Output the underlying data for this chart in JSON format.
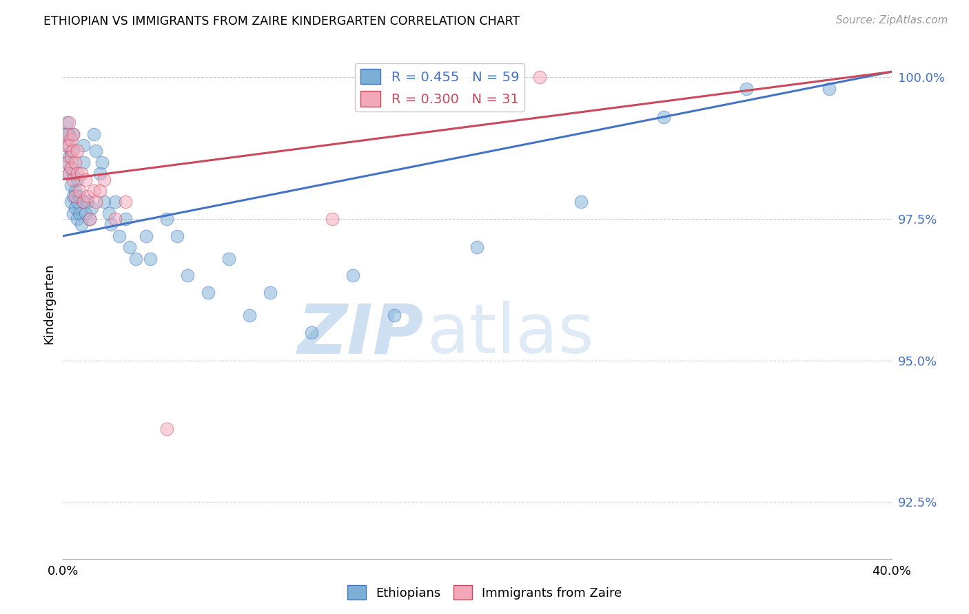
{
  "title": "ETHIOPIAN VS IMMIGRANTS FROM ZAIRE KINDERGARTEN CORRELATION CHART",
  "source": "Source: ZipAtlas.com",
  "ylabel": "Kindergarten",
  "xlim": [
    0.0,
    0.4
  ],
  "ylim": [
    0.915,
    1.005
  ],
  "xticks": [
    0.0,
    0.05,
    0.1,
    0.15,
    0.2,
    0.25,
    0.3,
    0.35,
    0.4
  ],
  "xtick_labels": [
    "0.0%",
    "",
    "",
    "",
    "",
    "",
    "",
    "",
    "40.0%"
  ],
  "yticks": [
    0.925,
    0.95,
    0.975,
    1.0
  ],
  "ytick_labels": [
    "92.5%",
    "95.0%",
    "97.5%",
    "100.0%"
  ],
  "blue_R": 0.455,
  "blue_N": 59,
  "pink_R": 0.3,
  "pink_N": 31,
  "blue_color": "#7BAFD4",
  "pink_color": "#F4A7B9",
  "blue_line_color": "#4472C4",
  "pink_line_color": "#C9485B",
  "watermark_zip": "ZIP",
  "watermark_atlas": "atlas",
  "blue_x": [
    0.001,
    0.002,
    0.002,
    0.002,
    0.003,
    0.003,
    0.003,
    0.004,
    0.004,
    0.004,
    0.004,
    0.005,
    0.005,
    0.005,
    0.005,
    0.006,
    0.006,
    0.007,
    0.007,
    0.007,
    0.008,
    0.008,
    0.009,
    0.01,
    0.01,
    0.01,
    0.011,
    0.012,
    0.013,
    0.014,
    0.015,
    0.016,
    0.018,
    0.019,
    0.02,
    0.022,
    0.023,
    0.025,
    0.027,
    0.03,
    0.032,
    0.035,
    0.04,
    0.042,
    0.05,
    0.055,
    0.06,
    0.07,
    0.08,
    0.09,
    0.1,
    0.12,
    0.14,
    0.16,
    0.2,
    0.25,
    0.29,
    0.33,
    0.37
  ],
  "blue_y": [
    0.99,
    0.988,
    0.992,
    0.985,
    0.983,
    0.986,
    0.99,
    0.984,
    0.987,
    0.981,
    0.978,
    0.979,
    0.983,
    0.976,
    0.99,
    0.977,
    0.98,
    0.975,
    0.978,
    0.982,
    0.976,
    0.979,
    0.974,
    0.978,
    0.985,
    0.988,
    0.976,
    0.978,
    0.975,
    0.977,
    0.99,
    0.987,
    0.983,
    0.985,
    0.978,
    0.976,
    0.974,
    0.978,
    0.972,
    0.975,
    0.97,
    0.968,
    0.972,
    0.968,
    0.975,
    0.972,
    0.965,
    0.962,
    0.968,
    0.958,
    0.962,
    0.955,
    0.965,
    0.958,
    0.97,
    0.978,
    0.993,
    0.998,
    0.998
  ],
  "pink_x": [
    0.001,
    0.002,
    0.002,
    0.003,
    0.003,
    0.003,
    0.004,
    0.004,
    0.004,
    0.005,
    0.005,
    0.005,
    0.006,
    0.006,
    0.007,
    0.007,
    0.008,
    0.009,
    0.01,
    0.011,
    0.012,
    0.013,
    0.015,
    0.016,
    0.018,
    0.02,
    0.025,
    0.03,
    0.05,
    0.13,
    0.23
  ],
  "pink_y": [
    0.988,
    0.99,
    0.985,
    0.988,
    0.983,
    0.992,
    0.986,
    0.989,
    0.984,
    0.982,
    0.987,
    0.99,
    0.985,
    0.979,
    0.983,
    0.987,
    0.98,
    0.983,
    0.978,
    0.982,
    0.979,
    0.975,
    0.98,
    0.978,
    0.98,
    0.982,
    0.975,
    0.978,
    0.938,
    0.975,
    1.0
  ],
  "blue_trend_x0": 0.0,
  "blue_trend_y0": 0.972,
  "blue_trend_x1": 0.4,
  "blue_trend_y1": 1.001,
  "pink_trend_x0": 0.0,
  "pink_trend_y0": 0.982,
  "pink_trend_x1": 0.4,
  "pink_trend_y1": 1.001
}
